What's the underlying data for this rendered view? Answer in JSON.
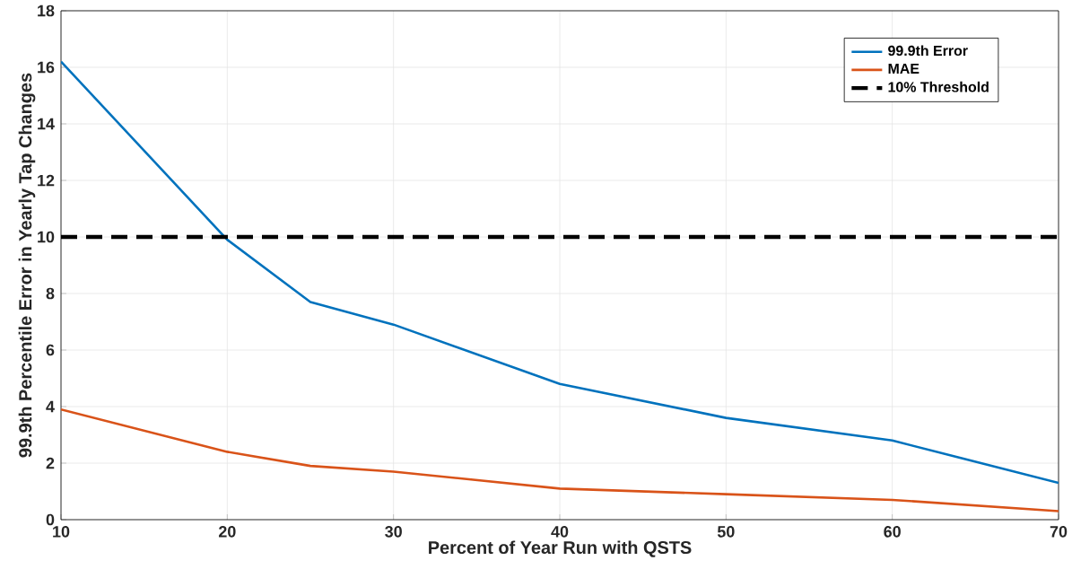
{
  "chart_data": {
    "type": "line",
    "xlabel": "Percent of Year Run with QSTS",
    "ylabel": "99.9th Percentile Error in Yearly Tap Changes",
    "x": [
      10,
      20,
      25,
      30,
      40,
      50,
      60,
      70
    ],
    "series": [
      {
        "name": "99.9th Error",
        "color": "#0072bd",
        "values": [
          16.2,
          9.9,
          7.7,
          6.9,
          4.8,
          3.6,
          2.8,
          1.3
        ]
      },
      {
        "name": "MAE",
        "color": "#d95319",
        "values": [
          3.9,
          2.4,
          1.9,
          1.7,
          1.1,
          0.9,
          0.7,
          0.3
        ]
      }
    ],
    "ref_lines": [
      {
        "axis": "y",
        "value": 10,
        "label": "10% Threshold",
        "color": "#000000",
        "line_style": "dashed"
      }
    ],
    "xlim": [
      10,
      70
    ],
    "ylim": [
      0,
      18
    ],
    "xticks": [
      10,
      20,
      30,
      40,
      50,
      60,
      70
    ],
    "yticks": [
      0,
      2,
      4,
      6,
      8,
      10,
      12,
      14,
      16,
      18
    ],
    "grid": true,
    "legend": "top right",
    "marker": "none",
    "line_style": "solid"
  }
}
